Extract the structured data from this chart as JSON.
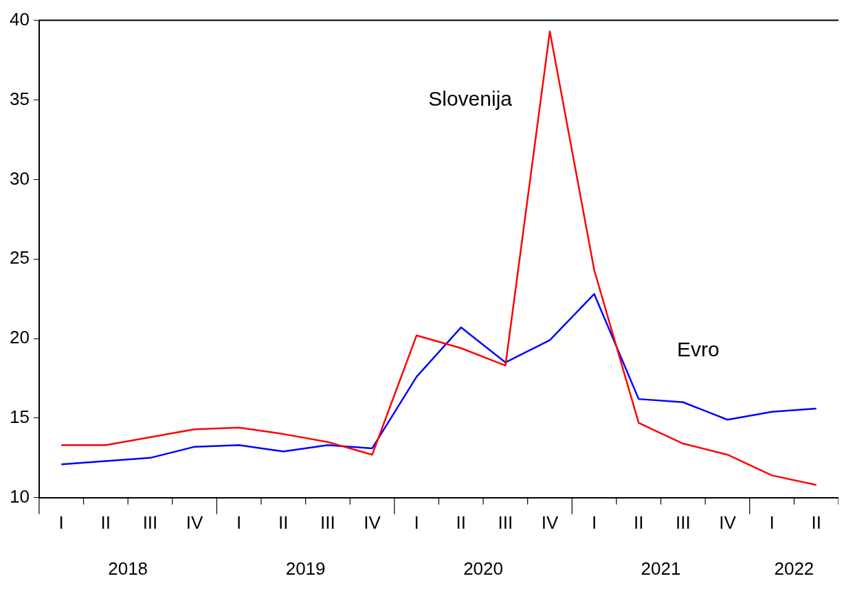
{
  "chart_data": {
    "type": "line",
    "categories": [
      "I",
      "II",
      "III",
      "IV",
      "I",
      "II",
      "III",
      "IV",
      "I",
      "II",
      "III",
      "IV",
      "I",
      "II",
      "III",
      "IV",
      "I",
      "II"
    ],
    "series": [
      {
        "name": "Slovenija",
        "color": "#ff0000",
        "values": [
          13.3,
          13.3,
          13.8,
          14.3,
          14.4,
          14.0,
          13.5,
          12.7,
          20.2,
          19.4,
          18.3,
          39.3,
          24.3,
          14.7,
          13.4,
          12.7,
          11.4,
          10.8
        ]
      },
      {
        "name": "Evro",
        "color": "#0000ff",
        "values": [
          12.1,
          12.3,
          12.5,
          13.2,
          13.3,
          12.9,
          13.3,
          13.1,
          17.6,
          20.7,
          18.5,
          19.9,
          22.8,
          16.2,
          16.0,
          14.9,
          15.4,
          15.6
        ]
      }
    ],
    "annotations": [
      "2018",
      "2019",
      "2020",
      "2021",
      "2022"
    ],
    "ylim": [
      10,
      40
    ],
    "yticks": [
      10,
      15,
      20,
      25,
      30,
      35,
      40
    ],
    "grid": false,
    "legend": false,
    "marker": "none",
    "line_style": "solid"
  }
}
